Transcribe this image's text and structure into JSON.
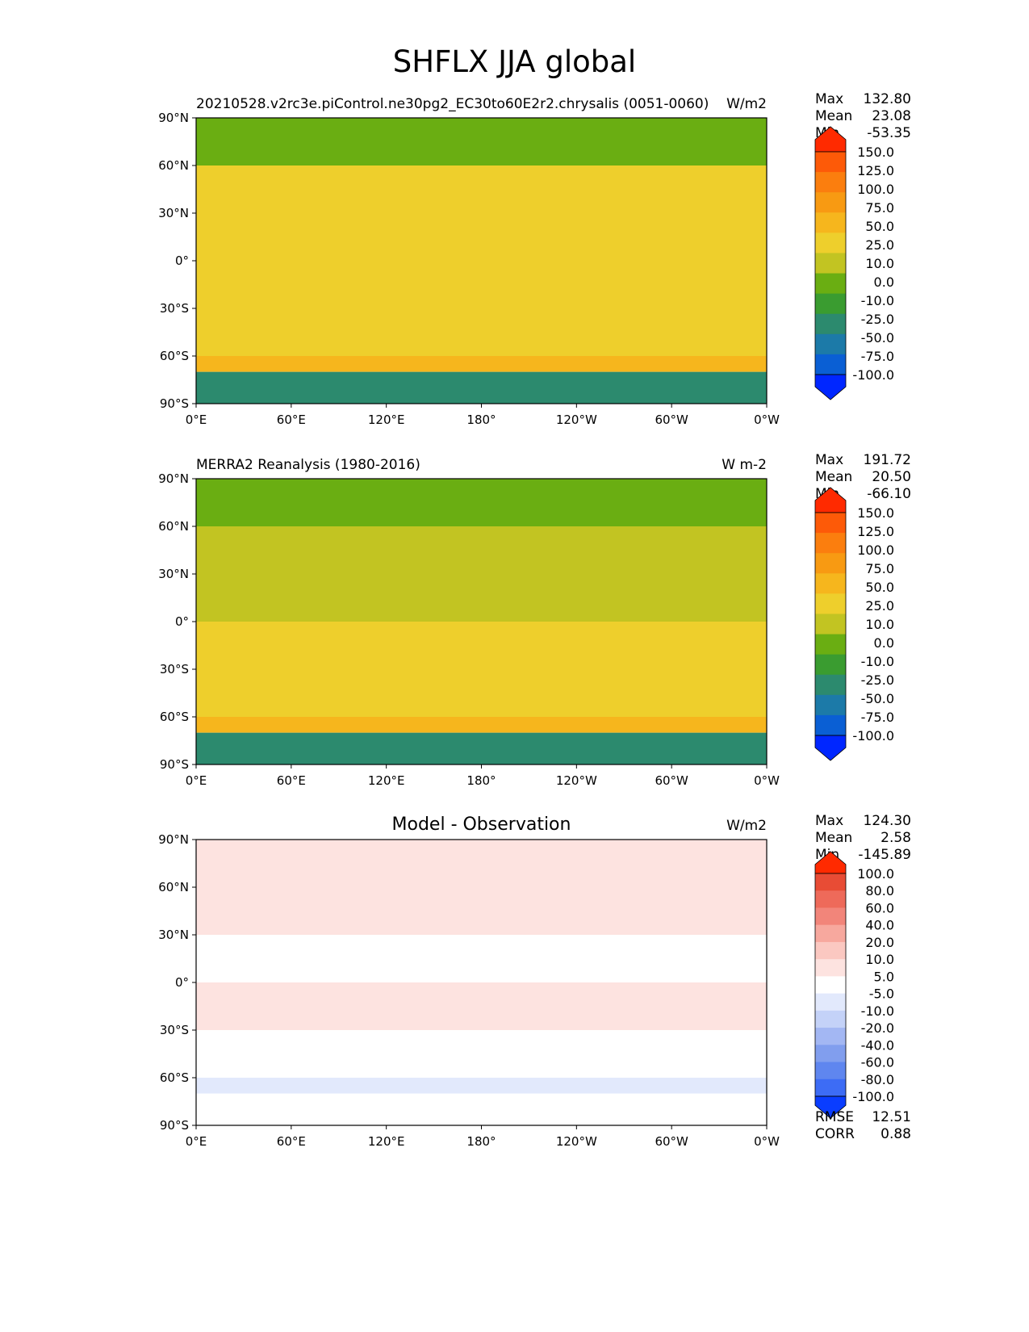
{
  "title": "SHFLX JJA global",
  "x_ticks": [
    "0°E",
    "60°E",
    "120°E",
    "180°",
    "120°W",
    "60°W",
    "0°W"
  ],
  "y_ticks": [
    "90°N",
    "60°N",
    "30°N",
    "0°",
    "30°S",
    "60°S",
    "90°S"
  ],
  "colors": {
    "main_levels": [
      "#0026ff",
      "#0a5fd4",
      "#1c7aa8",
      "#2c8a6e",
      "#3a9c30",
      "#6aae12",
      "#c2c422",
      "#eecf2c",
      "#f6b61d",
      "#f89a12",
      "#fb7e0e",
      "#fd5a08",
      "#ff2a00"
    ],
    "diff_levels": [
      "#0a3dff",
      "#3d6cf5",
      "#5f86ef",
      "#819eee",
      "#a3b7f3",
      "#c4d2f8",
      "#e2e9fc",
      "#ffffff",
      "#fde3e0",
      "#fbc8c1",
      "#f7a89e",
      "#f2857a",
      "#ee6a5a",
      "#e84c35",
      "#ff2a00"
    ]
  },
  "chart_data": [
    {
      "type": "heatmap",
      "title": "",
      "subtitle_left": "20210528.v2rc3e.piControl.ne30pg2_EC30to60E2r2.chrysalis (0051-0060)",
      "units": "W/m2",
      "xlabel": "",
      "ylabel": "",
      "xlim": [
        0,
        360
      ],
      "ylim": [
        -90,
        90
      ],
      "stats": {
        "max_label": "Max",
        "max": "132.80",
        "mean_label": "Mean",
        "mean": "23.08",
        "min_label": "Min",
        "min": "-53.35"
      },
      "colorbar_levels": [
        "150.0",
        "125.0",
        "100.0",
        "75.0",
        "50.0",
        "25.0",
        "10.0",
        "0.0",
        "-10.0",
        "-25.0",
        "-50.0",
        "-75.0",
        "-100.0"
      ],
      "field_bands_by_latitude": [
        {
          "lat": [
            60,
            90
          ],
          "value": -5
        },
        {
          "lat": [
            30,
            60
          ],
          "value": 10
        },
        {
          "lat": [
            0,
            30
          ],
          "value": 10
        },
        {
          "lat": [
            -30,
            0
          ],
          "value": 10
        },
        {
          "lat": [
            -60,
            -30
          ],
          "value": 15
        },
        {
          "lat": [
            -70,
            -60
          ],
          "value": 30
        },
        {
          "lat": [
            -90,
            -70
          ],
          "value": -30
        }
      ]
    },
    {
      "type": "heatmap",
      "title": "",
      "subtitle_left": "MERRA2 Reanalysis (1980-2016)",
      "units": "W m-2",
      "xlabel": "",
      "ylabel": "",
      "xlim": [
        0,
        360
      ],
      "ylim": [
        -90,
        90
      ],
      "stats": {
        "max_label": "Max",
        "max": "191.72",
        "mean_label": "Mean",
        "mean": "20.50",
        "min_label": "Min",
        "min": "-66.10"
      },
      "colorbar_levels": [
        "150.0",
        "125.0",
        "100.0",
        "75.0",
        "50.0",
        "25.0",
        "10.0",
        "0.0",
        "-10.0",
        "-25.0",
        "-50.0",
        "-75.0",
        "-100.0"
      ],
      "field_bands_by_latitude": [
        {
          "lat": [
            60,
            90
          ],
          "value": -5
        },
        {
          "lat": [
            30,
            60
          ],
          "value": 5
        },
        {
          "lat": [
            0,
            30
          ],
          "value": 5
        },
        {
          "lat": [
            -30,
            0
          ],
          "value": 10
        },
        {
          "lat": [
            -60,
            -30
          ],
          "value": 15
        },
        {
          "lat": [
            -70,
            -60
          ],
          "value": 25
        },
        {
          "lat": [
            -90,
            -70
          ],
          "value": -30
        }
      ]
    },
    {
      "type": "heatmap",
      "title": "Model - Observation",
      "subtitle_left": "",
      "units": "W/m2",
      "xlabel": "",
      "ylabel": "",
      "xlim": [
        0,
        360
      ],
      "ylim": [
        -90,
        90
      ],
      "stats": {
        "max_label": "Max",
        "max": "124.30",
        "mean_label": "Mean",
        "mean": "2.58",
        "min_label": "Min",
        "min": "-145.89"
      },
      "colorbar_levels": [
        "100.0",
        "80.0",
        "60.0",
        "40.0",
        "20.0",
        "10.0",
        "5.0",
        "-5.0",
        "-10.0",
        "-20.0",
        "-40.0",
        "-60.0",
        "-80.0",
        "-100.0"
      ],
      "metrics": {
        "rmse_label": "RMSE",
        "rmse": "12.51",
        "corr_label": "CORR",
        "corr": "0.88"
      },
      "field_bands_by_latitude": [
        {
          "lat": [
            60,
            90
          ],
          "value": 5
        },
        {
          "lat": [
            30,
            60
          ],
          "value": 5
        },
        {
          "lat": [
            0,
            30
          ],
          "value": 0
        },
        {
          "lat": [
            -30,
            0
          ],
          "value": 5
        },
        {
          "lat": [
            -60,
            -30
          ],
          "value": -5
        },
        {
          "lat": [
            -70,
            -60
          ],
          "value": -10
        },
        {
          "lat": [
            -90,
            -70
          ],
          "value": 0
        }
      ]
    }
  ]
}
